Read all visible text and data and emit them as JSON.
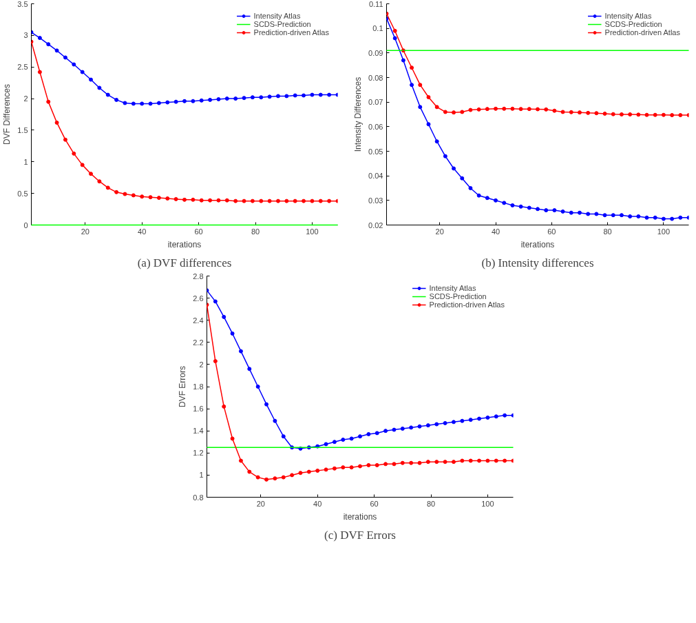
{
  "chart_data": [
    {
      "type": "line",
      "xlabel": "iterations",
      "ylabel": "DVF Differences",
      "annotations": [
        "(a) DVF differences"
      ],
      "xlim": [
        1,
        109
      ],
      "xticks": [
        20,
        40,
        60,
        80,
        100
      ],
      "ylim": [
        0,
        3.5
      ],
      "yticks": [
        0,
        0.5,
        1,
        1.5,
        2,
        2.5,
        3,
        3.5
      ],
      "grid": false,
      "legend": "top right",
      "x": [
        1,
        4,
        7,
        10,
        13,
        16,
        19,
        22,
        25,
        28,
        31,
        34,
        37,
        40,
        43,
        46,
        49,
        52,
        55,
        58,
        61,
        64,
        67,
        70,
        73,
        76,
        79,
        82,
        85,
        88,
        91,
        94,
        97,
        100,
        103,
        106,
        109
      ],
      "series": [
        {
          "name": "Intensity Atlas",
          "color": "#0000ff",
          "marker": "circle",
          "values": [
            3.05,
            2.96,
            2.86,
            2.76,
            2.65,
            2.54,
            2.42,
            2.3,
            2.17,
            2.06,
            1.98,
            1.93,
            1.92,
            1.92,
            1.92,
            1.93,
            1.94,
            1.95,
            1.96,
            1.96,
            1.97,
            1.98,
            1.99,
            2.0,
            2.0,
            2.01,
            2.02,
            2.02,
            2.03,
            2.04,
            2.04,
            2.05,
            2.05,
            2.06,
            2.06,
            2.06,
            2.06
          ]
        },
        {
          "name": "SCDS-Prediction",
          "color": "#00ff00",
          "marker": "none",
          "values": [
            0,
            0,
            0,
            0,
            0,
            0,
            0,
            0,
            0,
            0,
            0,
            0,
            0,
            0,
            0,
            0,
            0,
            0,
            0,
            0,
            0,
            0,
            0,
            0,
            0,
            0,
            0,
            0,
            0,
            0,
            0,
            0,
            0,
            0,
            0,
            0,
            0
          ]
        },
        {
          "name": "Prediction-driven Atlas",
          "color": "#ff0000",
          "marker": "circle",
          "values": [
            2.9,
            2.42,
            1.95,
            1.62,
            1.35,
            1.13,
            0.95,
            0.81,
            0.69,
            0.59,
            0.52,
            0.49,
            0.47,
            0.45,
            0.44,
            0.43,
            0.42,
            0.41,
            0.4,
            0.4,
            0.39,
            0.39,
            0.39,
            0.39,
            0.38,
            0.38,
            0.38,
            0.38,
            0.38,
            0.38,
            0.38,
            0.38,
            0.38,
            0.38,
            0.38,
            0.38,
            0.38
          ]
        }
      ]
    },
    {
      "type": "line",
      "xlabel": "iterations",
      "ylabel": "Intensity Differences",
      "annotations": [
        "(b) Intensity differences"
      ],
      "xlim": [
        1,
        109
      ],
      "xticks": [
        20,
        40,
        60,
        80,
        100
      ],
      "ylim": [
        0.02,
        0.11
      ],
      "yticks": [
        0.02,
        0.03,
        0.04,
        0.05,
        0.06,
        0.07,
        0.08,
        0.09,
        0.1,
        0.11
      ],
      "grid": false,
      "legend": "top right",
      "x": [
        1,
        4,
        7,
        10,
        13,
        16,
        19,
        22,
        25,
        28,
        31,
        34,
        37,
        40,
        43,
        46,
        49,
        52,
        55,
        58,
        61,
        64,
        67,
        70,
        73,
        76,
        79,
        82,
        85,
        88,
        91,
        94,
        97,
        100,
        103,
        106,
        109
      ],
      "series": [
        {
          "name": "Intensity Atlas",
          "color": "#0000ff",
          "marker": "circle",
          "values": [
            0.104,
            0.096,
            0.087,
            0.077,
            0.068,
            0.061,
            0.054,
            0.048,
            0.043,
            0.039,
            0.035,
            0.032,
            0.031,
            0.03,
            0.029,
            0.028,
            0.0275,
            0.027,
            0.0265,
            0.026,
            0.026,
            0.0255,
            0.025,
            0.025,
            0.0245,
            0.0245,
            0.024,
            0.024,
            0.024,
            0.0235,
            0.0235,
            0.023,
            0.023,
            0.0225,
            0.0225,
            0.023,
            0.023
          ]
        },
        {
          "name": "SCDS-Prediction",
          "color": "#00ff00",
          "marker": "none",
          "values": [
            0.091,
            0.091,
            0.091,
            0.091,
            0.091,
            0.091,
            0.091,
            0.091,
            0.091,
            0.091,
            0.091,
            0.091,
            0.091,
            0.091,
            0.091,
            0.091,
            0.091,
            0.091,
            0.091,
            0.091,
            0.091,
            0.091,
            0.091,
            0.091,
            0.091,
            0.091,
            0.091,
            0.091,
            0.091,
            0.091,
            0.091,
            0.091,
            0.091,
            0.091,
            0.091,
            0.091,
            0.091
          ]
        },
        {
          "name": "Prediction-driven Atlas",
          "color": "#ff0000",
          "marker": "circle",
          "values": [
            0.106,
            0.099,
            0.091,
            0.084,
            0.077,
            0.072,
            0.068,
            0.066,
            0.0658,
            0.066,
            0.0668,
            0.067,
            0.0672,
            0.0673,
            0.0673,
            0.0673,
            0.0672,
            0.0672,
            0.0671,
            0.067,
            0.0665,
            0.066,
            0.0659,
            0.0658,
            0.0656,
            0.0655,
            0.0653,
            0.0651,
            0.065,
            0.065,
            0.0649,
            0.0648,
            0.0648,
            0.0648,
            0.0647,
            0.0647,
            0.0647
          ]
        }
      ]
    },
    {
      "type": "line",
      "xlabel": "iterations",
      "ylabel": "DVF Errors",
      "annotations": [
        "(c) DVF Errors"
      ],
      "xlim": [
        1,
        109
      ],
      "xticks": [
        20,
        40,
        60,
        80,
        100
      ],
      "ylim": [
        0.8,
        2.8
      ],
      "yticks": [
        0.8,
        1,
        1.2,
        1.4,
        1.6,
        1.8,
        2,
        2.2,
        2.4,
        2.6,
        2.8
      ],
      "grid": false,
      "legend": "top right",
      "x": [
        1,
        4,
        7,
        10,
        13,
        16,
        19,
        22,
        25,
        28,
        31,
        34,
        37,
        40,
        43,
        46,
        49,
        52,
        55,
        58,
        61,
        64,
        67,
        70,
        73,
        76,
        79,
        82,
        85,
        88,
        91,
        94,
        97,
        100,
        103,
        106,
        109
      ],
      "series": [
        {
          "name": "Intensity Atlas",
          "color": "#0000ff",
          "marker": "circle",
          "values": [
            2.67,
            2.57,
            2.43,
            2.28,
            2.12,
            1.96,
            1.8,
            1.64,
            1.49,
            1.35,
            1.25,
            1.24,
            1.25,
            1.26,
            1.28,
            1.3,
            1.32,
            1.33,
            1.35,
            1.37,
            1.38,
            1.4,
            1.41,
            1.42,
            1.43,
            1.44,
            1.45,
            1.46,
            1.47,
            1.48,
            1.49,
            1.5,
            1.51,
            1.52,
            1.53,
            1.54,
            1.54
          ]
        },
        {
          "name": "SCDS-Prediction",
          "color": "#00ff00",
          "marker": "none",
          "values": [
            1.25,
            1.25,
            1.25,
            1.25,
            1.25,
            1.25,
            1.25,
            1.25,
            1.25,
            1.25,
            1.25,
            1.25,
            1.25,
            1.25,
            1.25,
            1.25,
            1.25,
            1.25,
            1.25,
            1.25,
            1.25,
            1.25,
            1.25,
            1.25,
            1.25,
            1.25,
            1.25,
            1.25,
            1.25,
            1.25,
            1.25,
            1.25,
            1.25,
            1.25,
            1.25,
            1.25,
            1.25
          ]
        },
        {
          "name": "Prediction-driven Atlas",
          "color": "#ff0000",
          "marker": "circle",
          "values": [
            2.54,
            2.03,
            1.62,
            1.33,
            1.13,
            1.03,
            0.98,
            0.96,
            0.97,
            0.98,
            1.0,
            1.02,
            1.03,
            1.04,
            1.05,
            1.06,
            1.07,
            1.07,
            1.08,
            1.09,
            1.09,
            1.1,
            1.1,
            1.11,
            1.11,
            1.11,
            1.12,
            1.12,
            1.12,
            1.12,
            1.13,
            1.13,
            1.13,
            1.13,
            1.13,
            1.13,
            1.13
          ]
        }
      ]
    }
  ]
}
